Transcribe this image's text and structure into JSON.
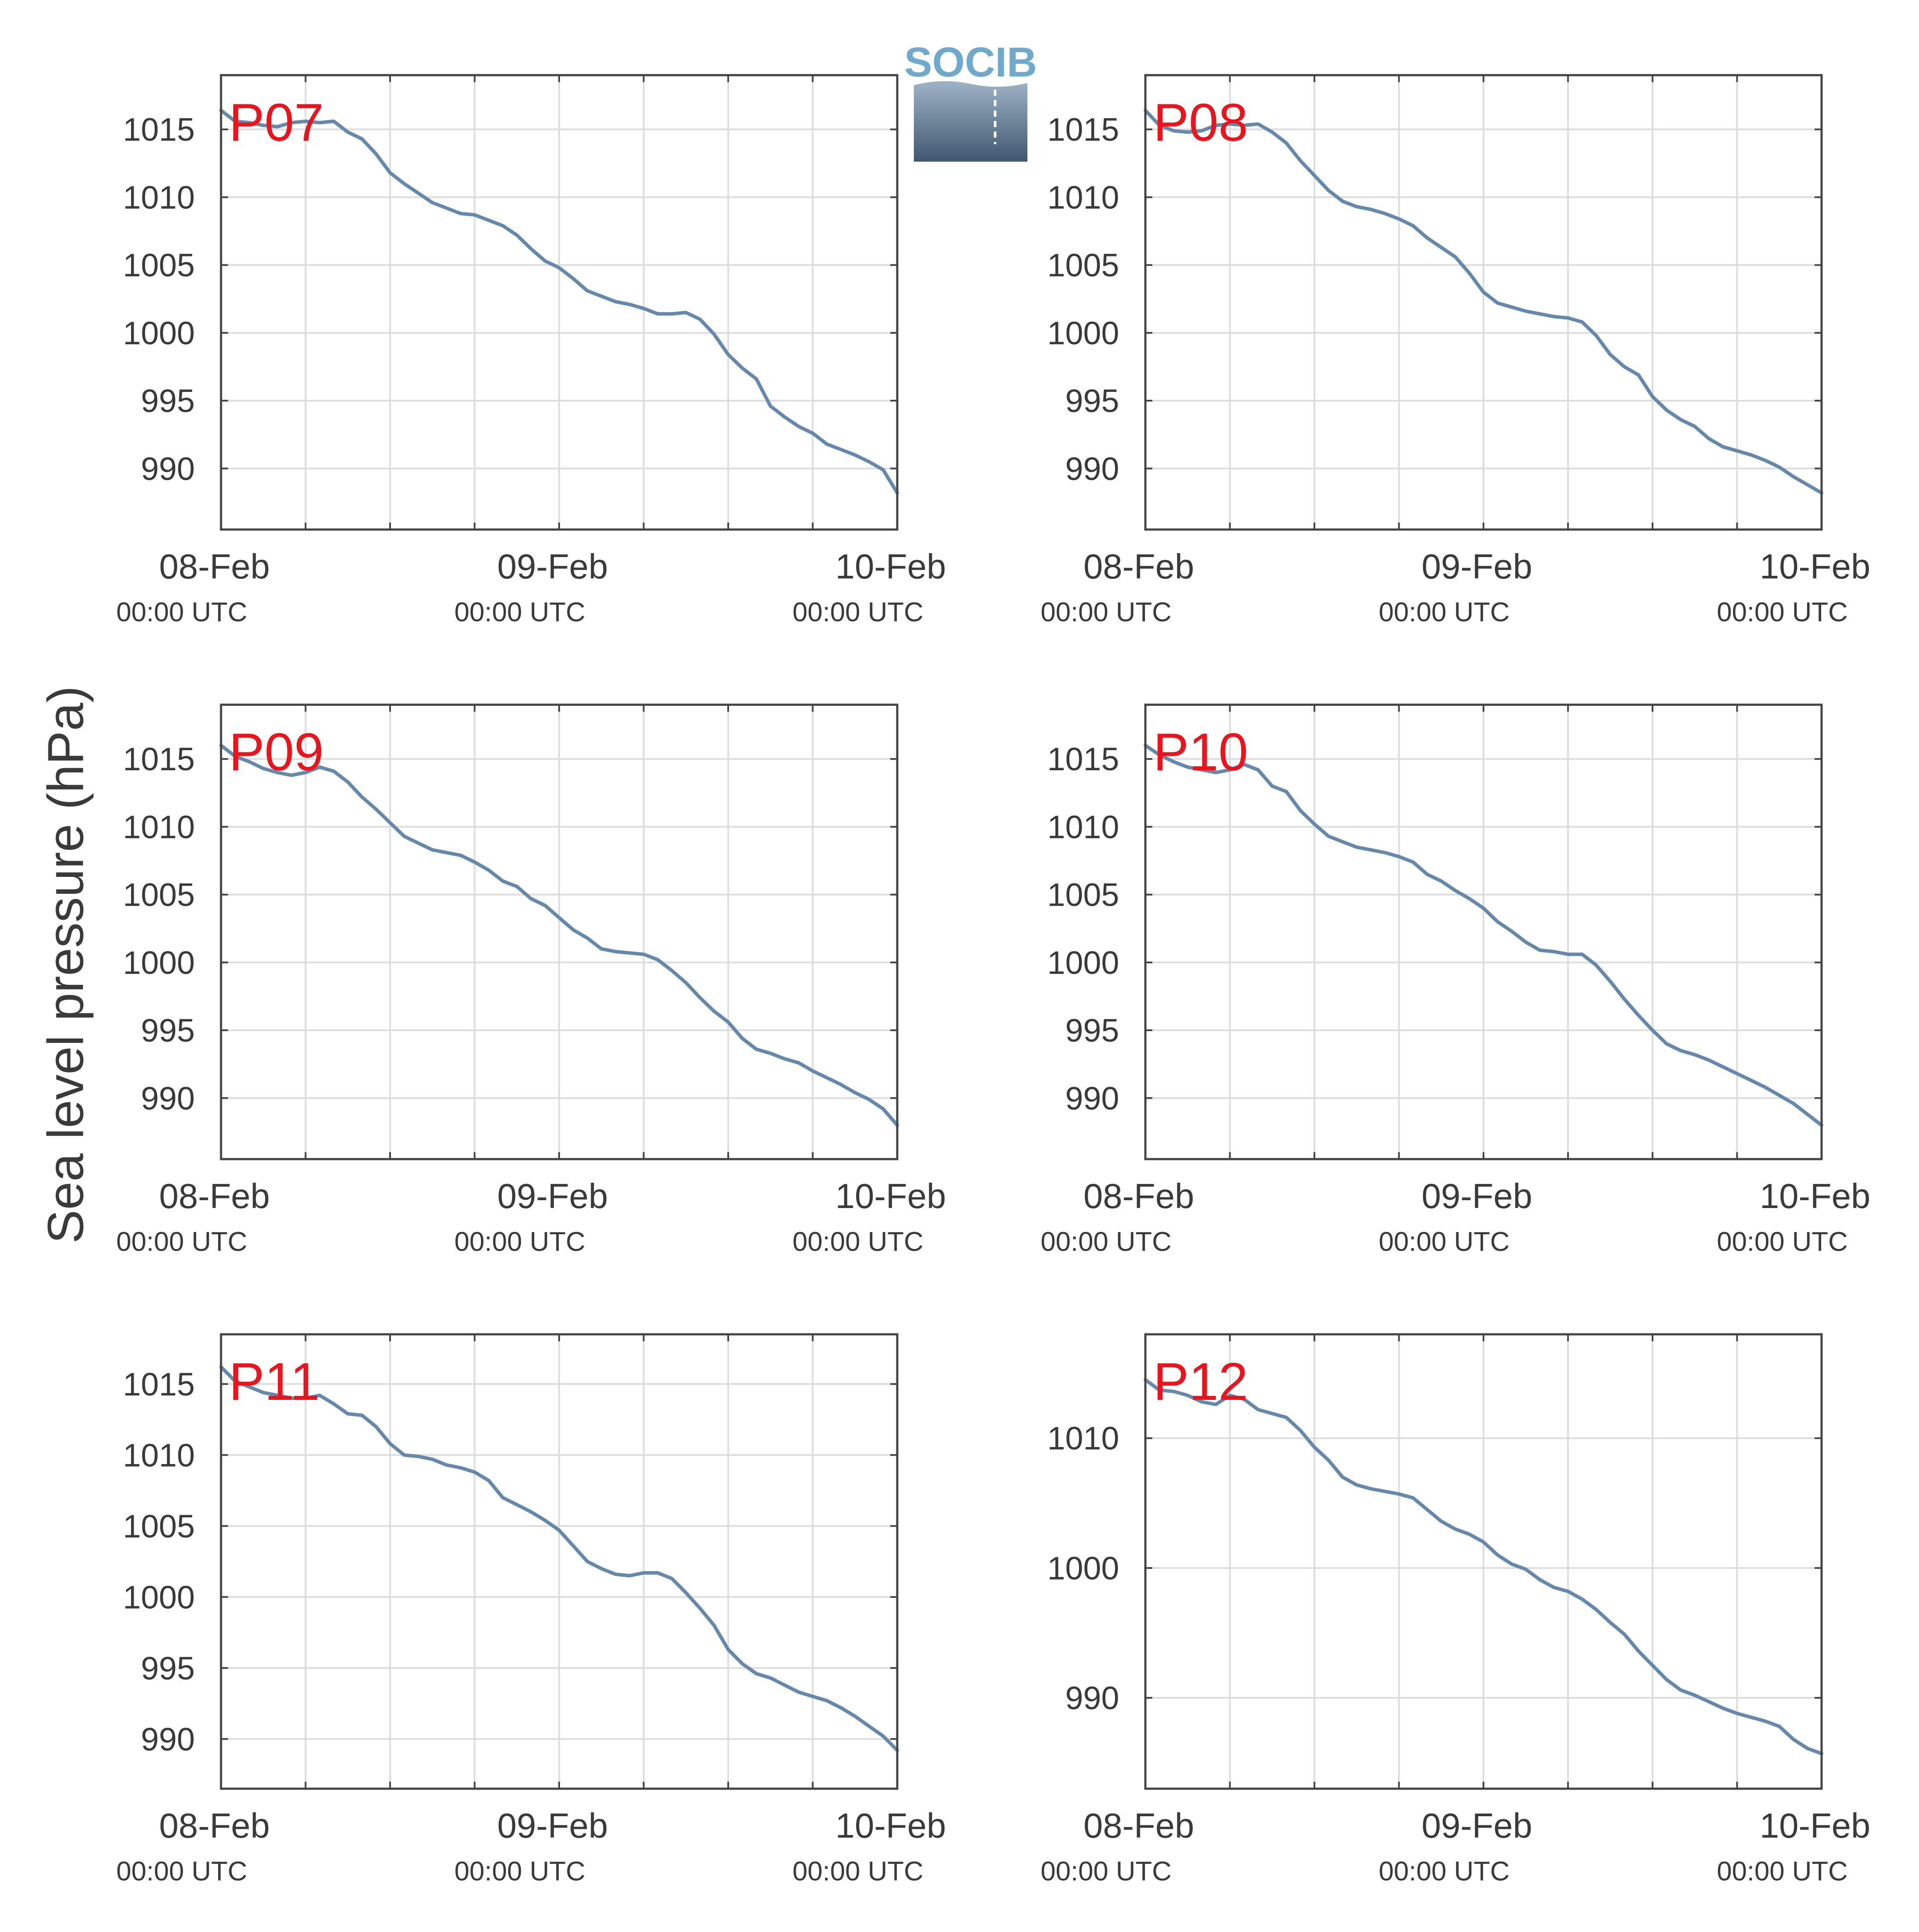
{
  "figure": {
    "ylabel": "Sea level pressure (hPa)",
    "logo_text": "SOCIB",
    "x_ticks": [
      {
        "main": "08-Feb",
        "sub": "00:00 UTC",
        "hours": 0
      },
      {
        "main": "09-Feb",
        "sub": "00:00 UTC",
        "hours": 24
      },
      {
        "main": "10-Feb",
        "sub": "00:00 UTC",
        "hours": 48
      }
    ],
    "x_range_hours": [
      0,
      48
    ],
    "x_minor_grid_step_hours": 6,
    "grid": true,
    "colors": {
      "line": "#6688aa",
      "label": "#e8141e",
      "grid": "#dddddd",
      "axis": "#444444",
      "text": "#3a3a3a",
      "logo_text": "#6fa9cc",
      "logo_top": "#9fb3c5",
      "logo_bottom": "#3f5870"
    }
  },
  "chart_data": [
    {
      "type": "line",
      "name": "P07",
      "ylim": [
        985.5,
        1019
      ],
      "yticks": [
        990,
        995,
        1000,
        1005,
        1010,
        1015
      ],
      "x_hours": [
        0,
        1,
        2,
        3,
        4,
        5,
        6,
        7,
        8,
        9,
        10,
        11,
        12,
        13,
        14,
        15,
        16,
        17,
        18,
        19,
        20,
        21,
        22,
        23,
        24,
        25,
        26,
        27,
        28,
        29,
        30,
        31,
        32,
        33,
        34,
        35,
        36,
        37,
        38,
        39,
        40,
        41,
        42,
        43,
        44,
        45,
        46,
        47,
        48
      ],
      "y": [
        1016.4,
        1015.6,
        1015.5,
        1015.3,
        1015.2,
        1015.5,
        1015.6,
        1015.5,
        1015.6,
        1014.8,
        1014.3,
        1013.2,
        1011.8,
        1011.0,
        1010.3,
        1009.6,
        1009.2,
        1008.8,
        1008.7,
        1008.3,
        1007.9,
        1007.2,
        1006.2,
        1005.3,
        1004.8,
        1004.0,
        1003.1,
        1002.7,
        1002.3,
        1002.1,
        1001.8,
        1001.4,
        1001.4,
        1001.5,
        1001.0,
        999.9,
        998.4,
        997.4,
        996.6,
        994.6,
        993.8,
        993.1,
        992.6,
        991.8,
        991.4,
        991.0,
        990.5,
        989.9,
        988.2
      ]
    },
    {
      "type": "line",
      "name": "P08",
      "ylim": [
        985.5,
        1019
      ],
      "yticks": [
        990,
        995,
        1000,
        1005,
        1010,
        1015
      ],
      "x_hours": [
        0,
        1,
        2,
        3,
        4,
        5,
        6,
        7,
        8,
        9,
        10,
        11,
        12,
        13,
        14,
        15,
        16,
        17,
        18,
        19,
        20,
        21,
        22,
        23,
        24,
        25,
        26,
        27,
        28,
        29,
        30,
        31,
        32,
        33,
        34,
        35,
        36,
        37,
        38,
        39,
        40,
        41,
        42,
        43,
        44,
        45,
        46,
        47,
        48
      ],
      "y": [
        1016.4,
        1015.3,
        1014.9,
        1014.8,
        1014.9,
        1015.3,
        1015.4,
        1015.3,
        1015.4,
        1014.8,
        1014.0,
        1012.7,
        1011.6,
        1010.5,
        1009.7,
        1009.3,
        1009.1,
        1008.8,
        1008.4,
        1007.9,
        1007.0,
        1006.3,
        1005.6,
        1004.4,
        1003.0,
        1002.2,
        1001.9,
        1001.6,
        1001.4,
        1001.2,
        1001.1,
        1000.8,
        999.8,
        998.4,
        997.5,
        996.9,
        995.3,
        994.3,
        993.6,
        993.1,
        992.2,
        991.6,
        991.3,
        991.0,
        990.6,
        990.1,
        989.4,
        988.8,
        988.2
      ]
    },
    {
      "type": "line",
      "name": "P09",
      "ylim": [
        985.5,
        1019
      ],
      "yticks": [
        990,
        995,
        1000,
        1005,
        1010,
        1015
      ],
      "x_hours": [
        0,
        1,
        2,
        3,
        4,
        5,
        6,
        7,
        8,
        9,
        10,
        11,
        12,
        13,
        14,
        15,
        16,
        17,
        18,
        19,
        20,
        21,
        22,
        23,
        24,
        25,
        26,
        27,
        28,
        29,
        30,
        31,
        32,
        33,
        34,
        35,
        36,
        37,
        38,
        39,
        40,
        41,
        42,
        43,
        44,
        45,
        46,
        47,
        48
      ],
      "y": [
        1016.0,
        1015.2,
        1014.8,
        1014.3,
        1014.0,
        1013.8,
        1014.0,
        1014.4,
        1014.1,
        1013.3,
        1012.2,
        1011.3,
        1010.3,
        1009.3,
        1008.8,
        1008.3,
        1008.1,
        1007.9,
        1007.4,
        1006.8,
        1006.0,
        1005.6,
        1004.7,
        1004.2,
        1003.3,
        1002.4,
        1001.8,
        1001.0,
        1000.8,
        1000.7,
        1000.6,
        1000.2,
        999.4,
        998.5,
        997.4,
        996.4,
        995.6,
        994.4,
        993.6,
        993.3,
        992.9,
        992.6,
        992.0,
        991.5,
        991.0,
        990.4,
        989.9,
        989.2,
        988.0
      ]
    },
    {
      "type": "line",
      "name": "P10",
      "ylim": [
        985.5,
        1019
      ],
      "yticks": [
        990,
        995,
        1000,
        1005,
        1010,
        1015
      ],
      "x_hours": [
        0,
        1,
        2,
        3,
        4,
        5,
        6,
        7,
        8,
        9,
        10,
        11,
        12,
        13,
        14,
        15,
        16,
        17,
        18,
        19,
        20,
        21,
        22,
        23,
        24,
        25,
        26,
        27,
        28,
        29,
        30,
        31,
        32,
        33,
        34,
        35,
        36,
        37,
        38,
        39,
        40,
        41,
        42,
        43,
        44,
        45,
        46,
        47,
        48
      ],
      "y": [
        1016.0,
        1015.3,
        1014.8,
        1014.4,
        1014.2,
        1014.0,
        1014.2,
        1014.6,
        1014.2,
        1013.0,
        1012.6,
        1011.2,
        1010.2,
        1009.3,
        1008.9,
        1008.5,
        1008.3,
        1008.1,
        1007.8,
        1007.4,
        1006.5,
        1006.0,
        1005.3,
        1004.7,
        1004.0,
        1003.0,
        1002.3,
        1001.5,
        1000.9,
        1000.8,
        1000.6,
        1000.6,
        999.8,
        998.6,
        997.3,
        996.1,
        995.0,
        994.0,
        993.5,
        993.2,
        992.8,
        992.3,
        991.8,
        991.3,
        990.8,
        990.2,
        989.6,
        988.8,
        988.0
      ]
    },
    {
      "type": "line",
      "name": "P11",
      "ylim": [
        986.5,
        1018.5
      ],
      "yticks": [
        990,
        995,
        1000,
        1005,
        1010,
        1015
      ],
      "x_hours": [
        0,
        1,
        2,
        3,
        4,
        5,
        6,
        7,
        8,
        9,
        10,
        11,
        12,
        13,
        14,
        15,
        16,
        17,
        18,
        19,
        20,
        21,
        22,
        23,
        24,
        25,
        26,
        27,
        28,
        29,
        30,
        31,
        32,
        33,
        34,
        35,
        36,
        37,
        38,
        39,
        40,
        41,
        42,
        43,
        44,
        45,
        46,
        47,
        48
      ],
      "y": [
        1016.2,
        1015.2,
        1014.8,
        1014.4,
        1014.2,
        1014.0,
        1014.0,
        1014.2,
        1013.6,
        1012.9,
        1012.8,
        1012.0,
        1010.8,
        1010.0,
        1009.9,
        1009.7,
        1009.3,
        1009.1,
        1008.8,
        1008.2,
        1007.0,
        1006.5,
        1006.0,
        1005.4,
        1004.7,
        1003.6,
        1002.5,
        1002.0,
        1001.6,
        1001.5,
        1001.7,
        1001.7,
        1001.3,
        1000.3,
        999.2,
        998.0,
        996.3,
        995.3,
        994.6,
        994.3,
        993.8,
        993.3,
        993.0,
        992.7,
        992.2,
        991.6,
        990.9,
        990.2,
        989.2
      ]
    },
    {
      "type": "line",
      "name": "P12",
      "ylim": [
        983,
        1018
      ],
      "yticks": [
        990,
        1000,
        1010
      ],
      "x_hours": [
        0,
        1,
        2,
        3,
        4,
        5,
        6,
        7,
        8,
        9,
        10,
        11,
        12,
        13,
        14,
        15,
        16,
        17,
        18,
        19,
        20,
        21,
        22,
        23,
        24,
        25,
        26,
        27,
        28,
        29,
        30,
        31,
        32,
        33,
        34,
        35,
        36,
        37,
        38,
        39,
        40,
        41,
        42,
        43,
        44,
        45,
        46,
        47,
        48
      ],
      "y": [
        1014.5,
        1013.7,
        1013.6,
        1013.3,
        1012.8,
        1012.6,
        1013.3,
        1013.0,
        1012.2,
        1011.9,
        1011.6,
        1010.6,
        1009.3,
        1008.3,
        1007.0,
        1006.4,
        1006.1,
        1005.9,
        1005.7,
        1005.4,
        1004.5,
        1003.6,
        1003.0,
        1002.6,
        1002.0,
        1001.0,
        1000.3,
        999.9,
        999.1,
        998.5,
        998.2,
        997.6,
        996.8,
        995.8,
        994.9,
        993.6,
        992.5,
        991.4,
        990.6,
        990.2,
        989.7,
        989.2,
        988.8,
        988.5,
        988.2,
        987.8,
        986.8,
        986.1,
        985.7
      ]
    }
  ]
}
